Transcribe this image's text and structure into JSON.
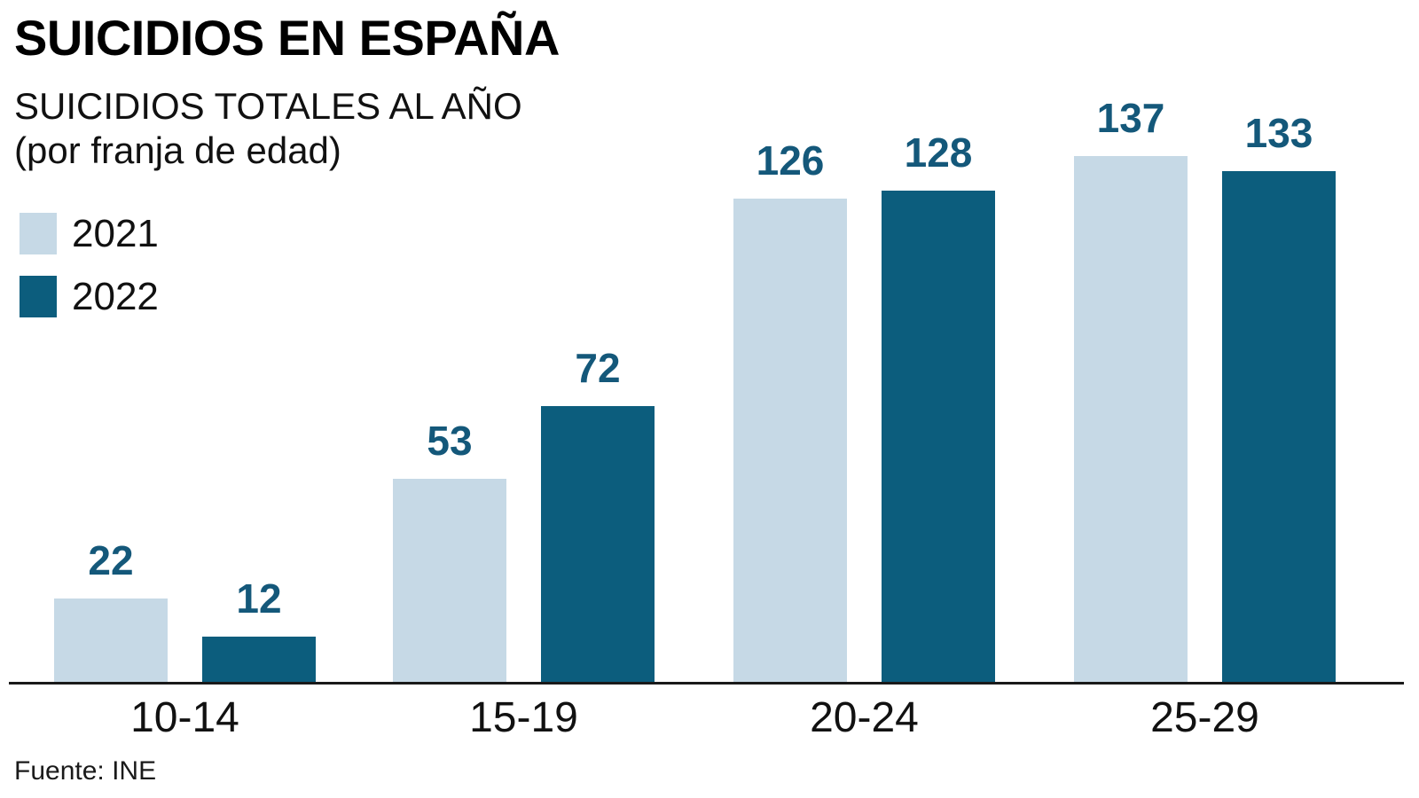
{
  "title": "SUICIDIOS EN ESPAÑA",
  "subtitle_line1": "SUICIDIOS TOTALES AL AÑO",
  "subtitle_line2": "(por franja de edad)",
  "source": "Fuente: INE",
  "legend": {
    "items": [
      {
        "label": "2021",
        "color": "#c6d9e6"
      },
      {
        "label": "2022",
        "color": "#0c5d7d"
      }
    ]
  },
  "colors": {
    "series_2021": "#c6d9e6",
    "series_2022": "#0c5d7d",
    "value_label": "#14587a",
    "axis": "#1a1a1a",
    "text": "#111111",
    "background": "#ffffff"
  },
  "chart_data": {
    "type": "bar",
    "title": "SUICIDIOS EN ESPAÑA",
    "subtitle": "SUICIDIOS TOTALES AL AÑO (por franja de edad)",
    "categories": [
      "10-14",
      "15-19",
      "20-24",
      "25-29"
    ],
    "series": [
      {
        "name": "2021",
        "color": "#c6d9e6",
        "values": [
          22,
          53,
          126,
          137
        ]
      },
      {
        "name": "2022",
        "color": "#0c5d7d",
        "values": [
          12,
          72,
          128,
          133
        ]
      }
    ],
    "xlabel": "",
    "ylabel": "",
    "ylim": [
      0,
      140
    ],
    "grid": false,
    "legend_position": "top-left",
    "value_labels": true,
    "value_label_color": "#14587a",
    "source": "Fuente: INE"
  }
}
